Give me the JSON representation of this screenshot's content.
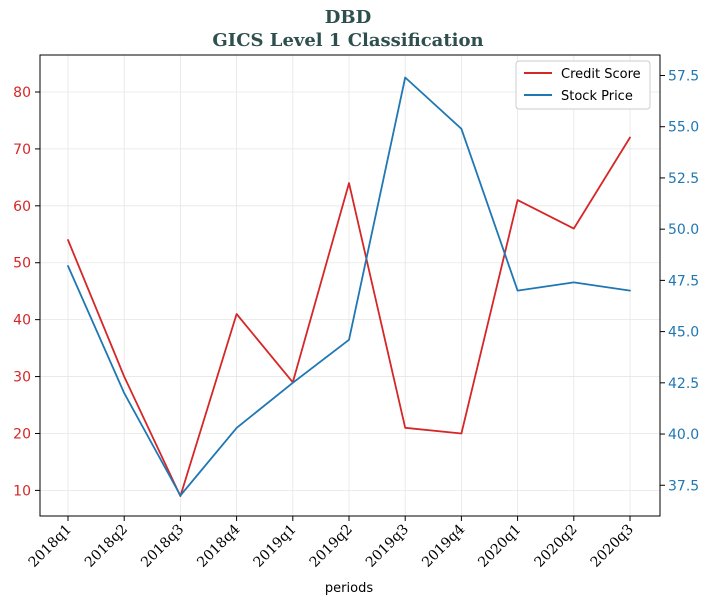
{
  "chart_data": {
    "type": "line",
    "title": "DBD",
    "subtitle": "GICS Level 1 Classification",
    "xlabel": "periods",
    "categories": [
      "2018q1",
      "2018q2",
      "2018q3",
      "2018q4",
      "2019q1",
      "2019q2",
      "2019q3",
      "2019q4",
      "2020q1",
      "2020q2",
      "2020q3"
    ],
    "series": [
      {
        "name": "Credit Score",
        "axis": "left",
        "color": "#d62728",
        "values": [
          54,
          30,
          9,
          41,
          29,
          64,
          21,
          20,
          61,
          56,
          72
        ]
      },
      {
        "name": "Stock Price",
        "axis": "right",
        "color": "#1f77b4",
        "values": [
          48.2,
          42.0,
          37.0,
          40.3,
          42.5,
          44.6,
          57.4,
          54.9,
          47.0,
          47.4,
          47.0
        ]
      }
    ],
    "ylim_left": [
      5.5,
      86.5
    ],
    "yticks_left": [
      10,
      20,
      30,
      40,
      50,
      60,
      70,
      80
    ],
    "ylim_right": [
      36.0,
      58.5
    ],
    "yticks_right": [
      "37.5",
      "40.0",
      "42.5",
      "45.0",
      "47.5",
      "50.0",
      "52.5",
      "55.0",
      "57.5"
    ],
    "grid": true,
    "legend_position": "top-right"
  }
}
